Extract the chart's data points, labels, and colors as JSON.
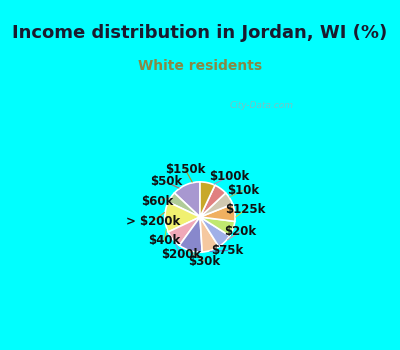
{
  "title": "Income distribution in Jordan, WI (%)",
  "subtitle": "White residents",
  "title_color": "#1a1a2e",
  "subtitle_color": "#888844",
  "bg_cyan": "#00ffff",
  "chart_bg": "#e0f5ee",
  "watermark": "City-Data.com",
  "labels": [
    "$100k",
    "$10k",
    "$125k",
    "$20k",
    "$75k",
    "$30k",
    "$200k",
    "$40k",
    "> $200k",
    "$60k",
    "$50k",
    "$150k"
  ],
  "values": [
    13,
    5,
    14,
    8,
    11,
    8,
    7,
    7,
    8,
    6,
    6,
    7
  ],
  "colors": [
    "#a898d0",
    "#b0cc98",
    "#f0f070",
    "#f0a8b8",
    "#8888cc",
    "#f5c8a0",
    "#a0b0e8",
    "#c0e870",
    "#f0b060",
    "#d0c8b0",
    "#e08080",
    "#c8a828"
  ],
  "label_fontsize": 8.5,
  "title_fontsize": 13,
  "subtitle_fontsize": 10,
  "line_colors": [
    "#9898c8",
    "#98c870",
    "#d8d840",
    "#e090a0",
    "#6878c8",
    "#d0a870",
    "#8898d8",
    "#a8d840",
    "#d09838",
    "#c0b898",
    "#c06060",
    "#b09820"
  ]
}
